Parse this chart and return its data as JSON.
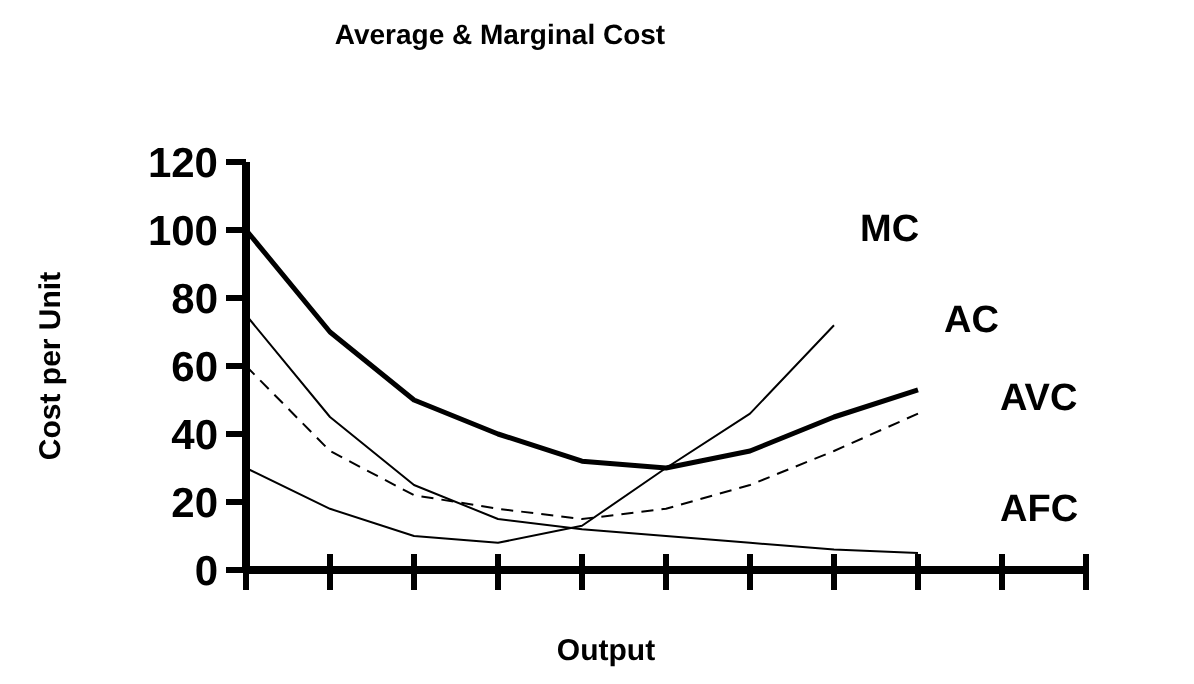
{
  "chart_data": {
    "type": "line",
    "title": "Average & Marginal Cost",
    "xlabel": "Output",
    "ylabel": "Cost per Unit",
    "categories": [
      null,
      null,
      null,
      null,
      null,
      null,
      null,
      null,
      null,
      null,
      null
    ],
    "ylim": [
      0,
      120
    ],
    "yticks": [
      0,
      20,
      40,
      60,
      80,
      100,
      120
    ],
    "grid": false,
    "legend": false,
    "marker": "none",
    "series": [
      {
        "name": "MC",
        "color": "#000000",
        "line_style": "solid",
        "values": [
          30,
          18,
          10,
          8,
          13,
          30,
          46,
          72,
          null,
          null,
          null
        ]
      },
      {
        "name": "AC",
        "color": "#000000",
        "line_style": "solid",
        "values": [
          100,
          70,
          50,
          40,
          32,
          30,
          35,
          45,
          53,
          null,
          null
        ]
      },
      {
        "name": "AVC",
        "color": "#000000",
        "line_style": "dashed",
        "values": [
          60,
          35,
          22,
          18,
          15,
          18,
          25,
          35,
          46,
          null,
          null
        ]
      },
      {
        "name": "AFC",
        "color": "#000000",
        "line_style": "solid",
        "values": [
          75,
          45,
          25,
          15,
          12,
          10,
          8,
          6,
          5,
          null,
          null
        ]
      }
    ]
  }
}
